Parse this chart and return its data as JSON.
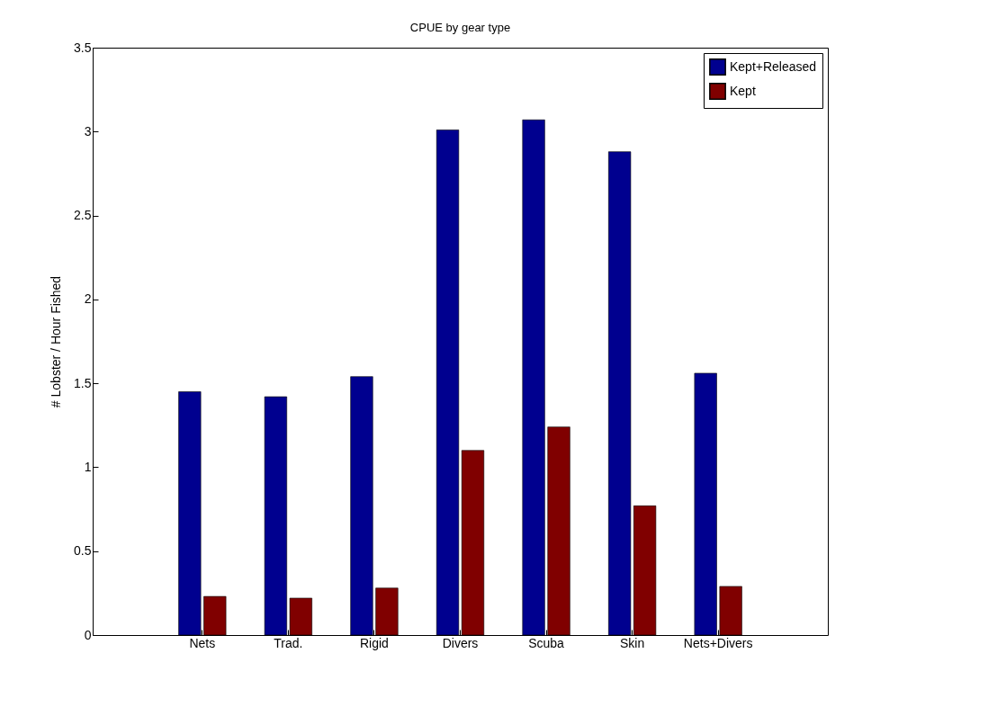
{
  "chart_data": {
    "type": "bar",
    "title": "CPUE by gear type",
    "ylabel": "# Lobster / Hour Fished",
    "categories": [
      "Nets",
      "Trad.",
      "Rigid",
      "Divers",
      "Scuba",
      "Skin",
      "Nets+Divers"
    ],
    "series": [
      {
        "name": "Kept+Released",
        "color": "#00008f",
        "values": [
          1.45,
          1.42,
          1.54,
          3.01,
          3.07,
          2.88,
          1.56
        ]
      },
      {
        "name": "Kept",
        "color": "#800000",
        "values": [
          0.23,
          0.22,
          0.28,
          1.1,
          1.24,
          0.77,
          0.29
        ]
      }
    ],
    "ylim": [
      0,
      3.5
    ],
    "yticks": [
      0,
      0.5,
      1,
      1.5,
      2,
      2.5,
      3,
      3.5
    ],
    "legend": "top right"
  }
}
